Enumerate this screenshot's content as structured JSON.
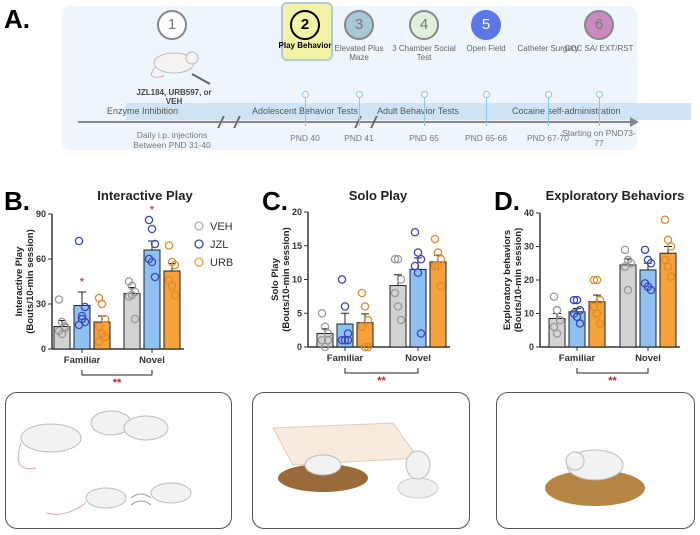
{
  "panel_a": {
    "letter": "A.",
    "steps": [
      {
        "num": "1",
        "label": "",
        "pnd": "Daily i.p. injections Between PND 31-40",
        "color": "#ffffff"
      },
      {
        "num": "2",
        "label": "Play Behavior",
        "pnd": "PND 40",
        "color": "#f3f3a8"
      },
      {
        "num": "3",
        "label": "Elevated Plus Maze",
        "pnd": "PND 41",
        "color": "#a9c9d9"
      },
      {
        "num": "4",
        "label": "3 Chamber Social Test",
        "pnd": "PND 65",
        "color": "#dff0dc"
      },
      {
        "num": "5",
        "label": "Open Field",
        "pnd": "PND 65-66",
        "color": "#5b77e6"
      },
      {
        "num": "",
        "label": "Catheter Surgery",
        "pnd": "PND 67-70",
        "color": ""
      },
      {
        "num": "6",
        "label": "COC SA/ EXT/RST",
        "pnd": "Starting on PND73-77",
        "color": "#c98bbd"
      }
    ],
    "drug_label": "JZL184, URB597, or VEH",
    "phases": [
      "Enzyme Inhibition",
      "Adolescent Behavior Tests",
      "Adult Behavior Tests",
      "Cocaine self-administration"
    ]
  },
  "legend": [
    {
      "name": "VEH",
      "color": "#b0b0b0"
    },
    {
      "name": "JZL",
      "color": "#3a44c0"
    },
    {
      "name": "URB",
      "color": "#f0a040"
    }
  ],
  "chart_data": [
    {
      "letter": "B.",
      "type": "bar",
      "title": "Interactive Play",
      "ylabel": "Interactive Play",
      "ylabel2": "(Bouts/10-min session)",
      "ylim": [
        0,
        90
      ],
      "yticks": [
        0,
        30,
        60,
        90
      ],
      "categories": [
        "Familiar",
        "Novel"
      ],
      "sig": "**",
      "series": [
        {
          "name": "VEH",
          "fill": "#d3d3d3",
          "means": [
            15,
            37
          ],
          "sem": [
            4,
            4
          ],
          "points": [
            [
              33,
              18,
              15,
              12,
              10,
              14
            ],
            [
              45,
              42,
              38,
              35,
              36,
              20
            ]
          ]
        },
        {
          "name": "JZL",
          "fill": "#8fc2f2",
          "means": [
            29,
            66
          ],
          "sem": [
            9,
            6
          ],
          "points": [
            [
              72,
              20,
              18,
              16,
              22,
              28
            ],
            [
              86,
              80,
              70,
              60,
              58,
              48
            ]
          ],
          "stars": [
            "*",
            "*"
          ]
        },
        {
          "name": "URB",
          "fill": "#f6a13a",
          "means": [
            18,
            52
          ],
          "sem": [
            4,
            5
          ],
          "points": [
            [
              34,
              30,
              20,
              15,
              10,
              8,
              5
            ],
            [
              69,
              58,
              56,
              46,
              42,
              36
            ]
          ]
        }
      ]
    },
    {
      "letter": "C.",
      "type": "bar",
      "title": "Solo Play",
      "ylabel": "Solo Play",
      "ylabel2": "(Bouts/10-min session)",
      "ylim": [
        0,
        20
      ],
      "yticks": [
        0,
        5,
        10,
        15,
        20
      ],
      "categories": [
        "Familiar",
        "Novel"
      ],
      "sig": "**",
      "series": [
        {
          "name": "VEH",
          "fill": "#d3d3d3",
          "means": [
            2,
            9.1
          ],
          "sem": [
            0.7,
            1.6
          ],
          "points": [
            [
              5,
              3,
              2,
              1,
              0,
              1
            ],
            [
              13,
              13,
              10,
              8,
              6,
              4
            ]
          ]
        },
        {
          "name": "JZL",
          "fill": "#8fc2f2",
          "means": [
            3.4,
            11.5
          ],
          "sem": [
            1.6,
            1.7
          ],
          "points": [
            [
              10,
              6,
              2,
              1,
              1,
              1
            ],
            [
              17,
              14,
              13,
              12,
              11,
              2
            ]
          ]
        },
        {
          "name": "URB",
          "fill": "#f6a13a",
          "means": [
            3.6,
            12.6
          ],
          "sem": [
            1.3,
            1
          ],
          "points": [
            [
              8,
              6,
              4,
              3,
              0,
              0
            ],
            [
              16,
              14,
              13,
              12,
              12,
              9
            ]
          ]
        }
      ]
    },
    {
      "letter": "D.",
      "type": "bar",
      "title": "Exploratory Behaviors",
      "ylabel": "Exploratory behaviors",
      "ylabel2": "(Bouts/10-min session)",
      "ylim": [
        0,
        40
      ],
      "yticks": [
        0,
        10,
        20,
        30,
        40
      ],
      "categories": [
        "Familiar",
        "Novel"
      ],
      "sig": "**",
      "series": [
        {
          "name": "VEH",
          "fill": "#d3d3d3",
          "means": [
            8.5,
            24.5
          ],
          "sem": [
            1.5,
            1.8
          ],
          "points": [
            [
              15,
              11,
              8,
              6,
              4
            ],
            [
              29,
              26,
              25,
              24,
              17
            ]
          ]
        },
        {
          "name": "JZL",
          "fill": "#8fc2f2",
          "means": [
            10.5,
            23
          ],
          "sem": [
            1,
            2
          ],
          "points": [
            [
              14,
              14,
              11,
              10,
              9,
              7
            ],
            [
              29,
              26,
              25,
              19,
              18,
              17
            ]
          ]
        },
        {
          "name": "URB",
          "fill": "#f6a13a",
          "means": [
            13.5,
            28
          ],
          "sem": [
            2,
            2
          ],
          "points": [
            [
              20,
              20,
              14,
              12,
              10,
              7
            ],
            [
              38,
              32,
              30,
              26,
              24,
              21
            ]
          ]
        }
      ]
    }
  ]
}
